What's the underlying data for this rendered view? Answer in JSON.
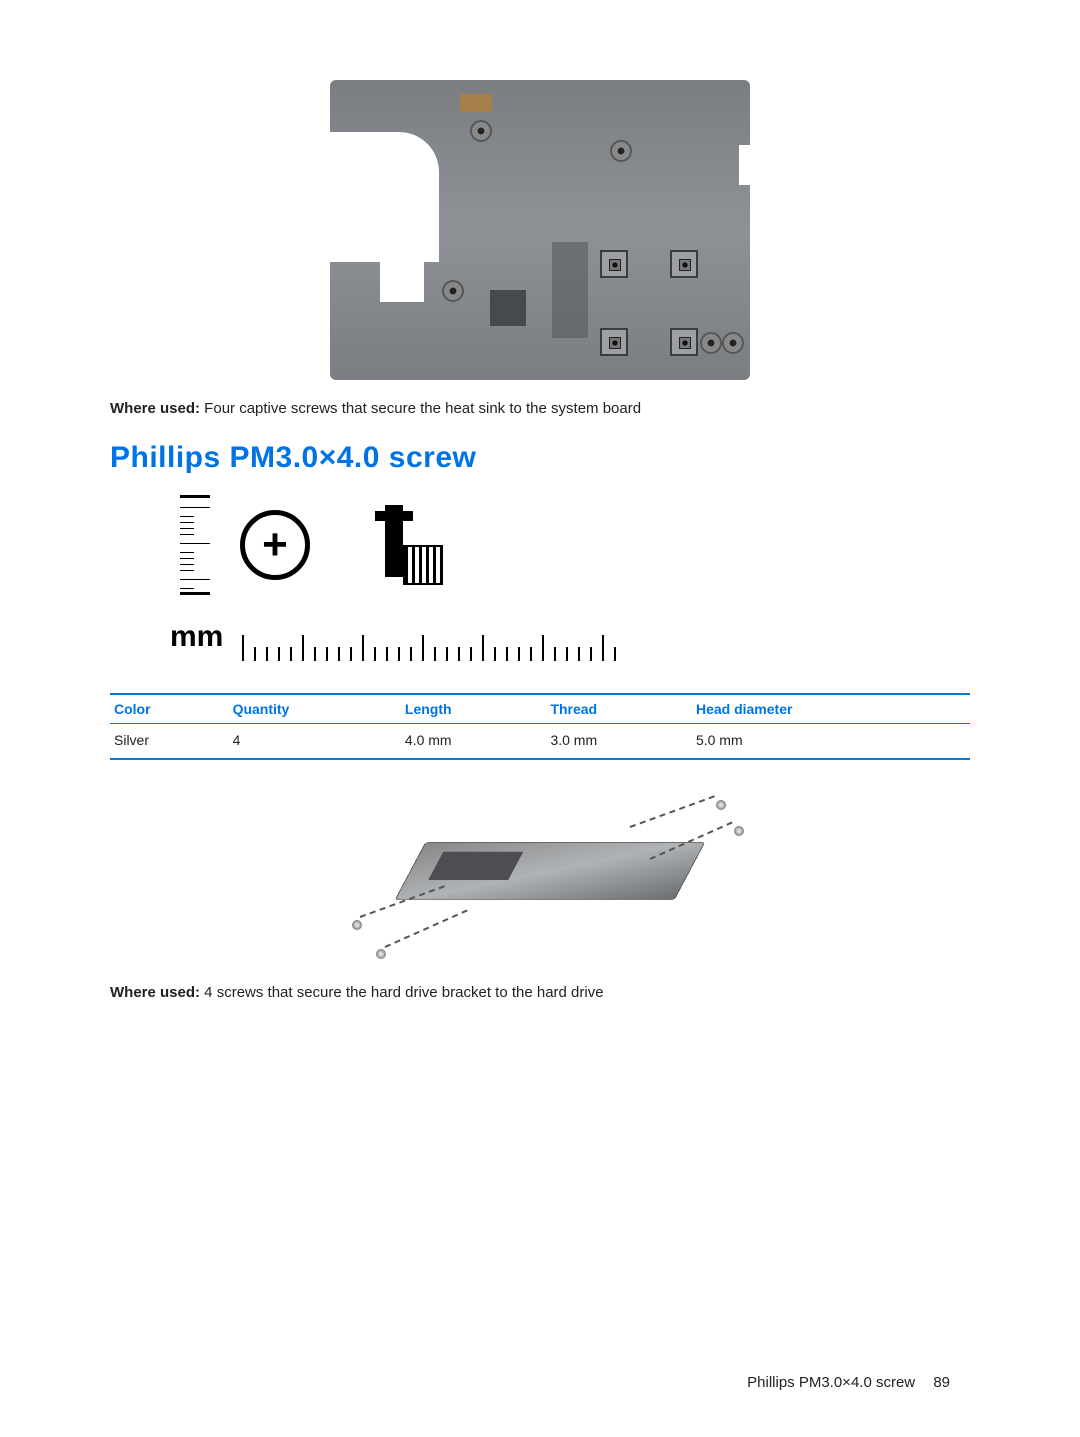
{
  "captions": {
    "top_label": "Where used:",
    "top_text": " Four captive screws that secure the heat sink to the system board",
    "bottom_label": "Where used:",
    "bottom_text": " 4 screws that secure the hard drive bracket to the hard drive"
  },
  "heading": "Phillips PM3.0×4.0 screw",
  "diagram": {
    "mm_label": "mm",
    "head_symbol": "+"
  },
  "table": {
    "columns": [
      "Color",
      "Quantity",
      "Length",
      "Thread",
      "Head diameter"
    ],
    "row": [
      "Silver",
      "4",
      "4.0 mm",
      "3.0 mm",
      "5.0 mm"
    ],
    "header_color": "#0073e6",
    "border_color": "#007acc",
    "font_size": 14
  },
  "footer": {
    "title": "Phillips PM3.0×4.0 screw",
    "page": "89"
  },
  "styling": {
    "heading_color": "#0073e6",
    "heading_fontsize": 30,
    "body_fontsize": 15,
    "background": "#ffffff",
    "figure_bg": "#888b8f"
  }
}
